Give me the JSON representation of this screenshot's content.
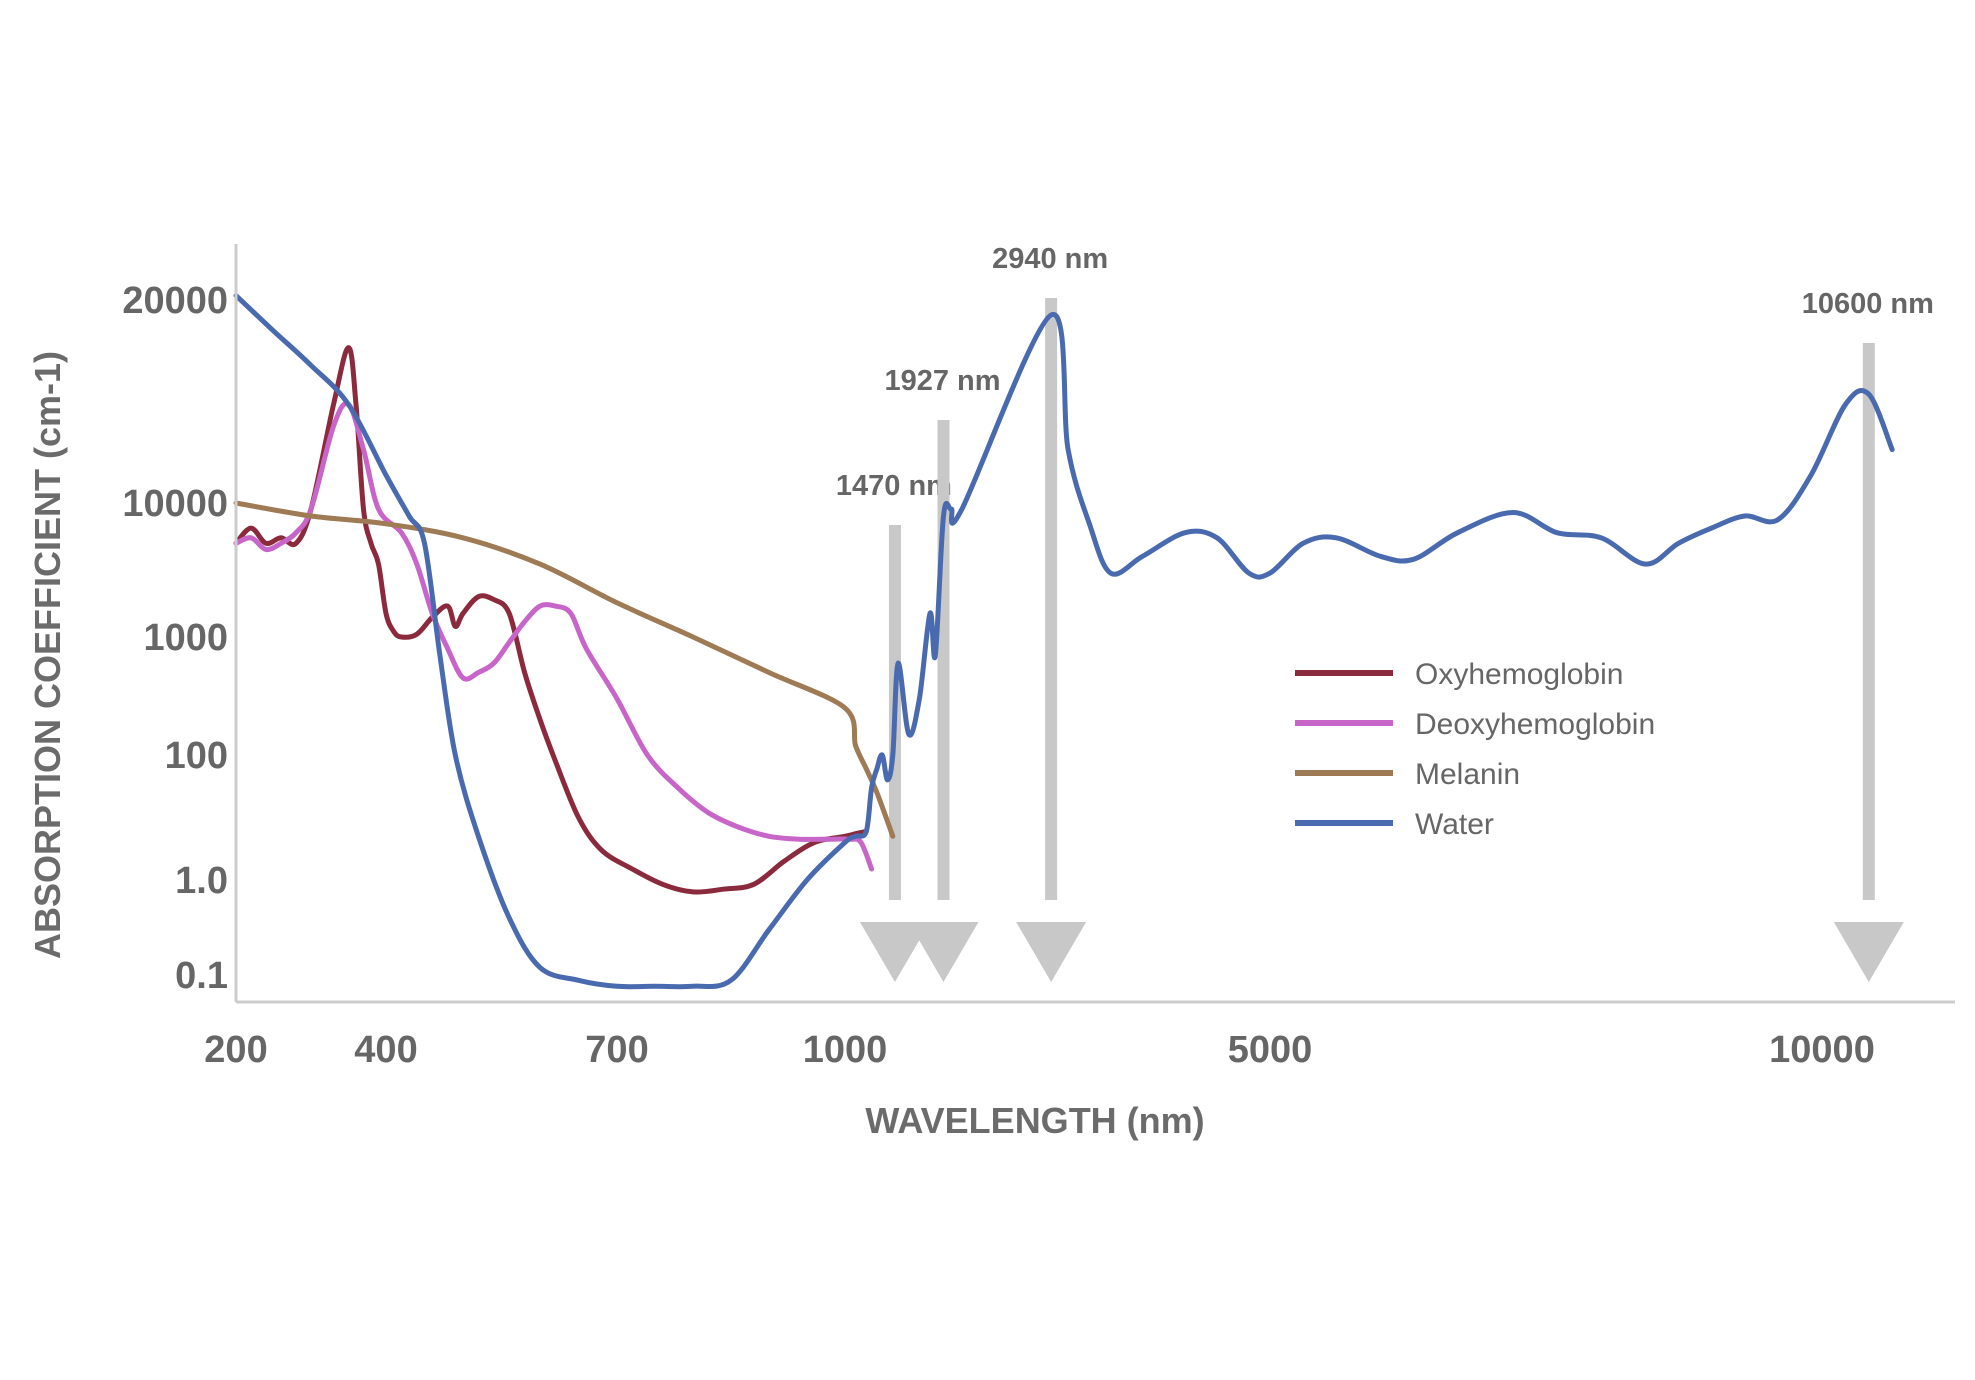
{
  "chart_data": {
    "type": "line",
    "xlabel": "WAVELENGTH (nm)",
    "ylabel": "ABSORPTION COEFFICIENT (cm-1)",
    "x_ticks": [
      "200",
      "400",
      "700",
      "1000",
      "5000",
      "10000"
    ],
    "y_ticks": [
      "0.1",
      "1.0",
      "100",
      "1000",
      "10000",
      "20000"
    ],
    "legend_position": "center-right",
    "grid": false,
    "annotations": [
      {
        "label": "1470 nm",
        "x": 1470
      },
      {
        "label": "1927 nm",
        "x": 1927
      },
      {
        "label": "2940 nm",
        "x": 2940
      },
      {
        "label": "10600 nm",
        "x": 10600
      }
    ],
    "series": [
      {
        "name": "Oxyhemoglobin",
        "color": "#8b2a3c",
        "points": [
          [
            200,
            5000
          ],
          [
            220,
            6500
          ],
          [
            240,
            5000
          ],
          [
            260,
            5500
          ],
          [
            280,
            5000
          ],
          [
            300,
            9000
          ],
          [
            330,
            14000
          ],
          [
            350,
            17000
          ],
          [
            360,
            14000
          ],
          [
            370,
            9000
          ],
          [
            380,
            5000
          ],
          [
            390,
            3500
          ],
          [
            400,
            1500
          ],
          [
            410,
            1100
          ],
          [
            420,
            1000
          ],
          [
            440,
            1050
          ],
          [
            460,
            1400
          ],
          [
            480,
            1700
          ],
          [
            490,
            1200
          ],
          [
            500,
            1500
          ],
          [
            520,
            2000
          ],
          [
            540,
            1900
          ],
          [
            560,
            1500
          ],
          [
            580,
            500
          ],
          [
            600,
            200
          ],
          [
            620,
            80
          ],
          [
            650,
            10
          ],
          [
            680,
            3
          ],
          [
            720,
            1.5
          ],
          [
            760,
            0.9
          ],
          [
            800,
            0.75
          ],
          [
            840,
            0.8
          ],
          [
            880,
            0.9
          ],
          [
            920,
            2
          ],
          [
            960,
            4
          ],
          [
            1000,
            5
          ],
          [
            1100,
            5.5
          ],
          [
            1200,
            6
          ]
        ]
      },
      {
        "name": "Deoxyhemoglobin",
        "color": "#c865c8",
        "points": [
          [
            200,
            5000
          ],
          [
            220,
            5500
          ],
          [
            240,
            4500
          ],
          [
            260,
            5000
          ],
          [
            280,
            6000
          ],
          [
            300,
            9000
          ],
          [
            330,
            13000
          ],
          [
            350,
            14000
          ],
          [
            370,
            12000
          ],
          [
            390,
            9000
          ],
          [
            420,
            6000
          ],
          [
            440,
            3500
          ],
          [
            460,
            1500
          ],
          [
            480,
            800
          ],
          [
            500,
            450
          ],
          [
            520,
            500
          ],
          [
            540,
            600
          ],
          [
            560,
            900
          ],
          [
            580,
            1300
          ],
          [
            600,
            1700
          ],
          [
            620,
            1700
          ],
          [
            640,
            1500
          ],
          [
            660,
            800
          ],
          [
            700,
            300
          ],
          [
            740,
            100
          ],
          [
            780,
            30
          ],
          [
            820,
            12
          ],
          [
            860,
            7
          ],
          [
            900,
            5
          ],
          [
            940,
            4.5
          ],
          [
            980,
            4.5
          ],
          [
            1050,
            4.5
          ],
          [
            1150,
            4
          ],
          [
            1250,
            1.5
          ]
        ]
      },
      {
        "name": "Melanin",
        "color": "#9e7a55",
        "points": [
          [
            200,
            10000
          ],
          [
            300,
            8000
          ],
          [
            400,
            7000
          ],
          [
            500,
            5500
          ],
          [
            600,
            3500
          ],
          [
            700,
            1800
          ],
          [
            800,
            1000
          ],
          [
            900,
            500
          ],
          [
            1000,
            250
          ],
          [
            1100,
            120
          ],
          [
            1200,
            60
          ],
          [
            1300,
            25
          ],
          [
            1450,
            5
          ]
        ]
      },
      {
        "name": "Water",
        "color": "#4a6ab0",
        "points": [
          [
            200,
            21000
          ],
          [
            250,
            18000
          ],
          [
            300,
            16000
          ],
          [
            350,
            14000
          ],
          [
            400,
            11000
          ],
          [
            430,
            8000
          ],
          [
            450,
            5000
          ],
          [
            470,
            700
          ],
          [
            490,
            100
          ],
          [
            520,
            5
          ],
          [
            560,
            0.4
          ],
          [
            600,
            0.12
          ],
          [
            650,
            0.09
          ],
          [
            700,
            0.08
          ],
          [
            750,
            0.08
          ],
          [
            800,
            0.08
          ],
          [
            850,
            0.09
          ],
          [
            900,
            0.3
          ],
          [
            950,
            1
          ],
          [
            1000,
            4
          ],
          [
            1100,
            5
          ],
          [
            1200,
            6
          ],
          [
            1250,
            30
          ],
          [
            1300,
            60
          ],
          [
            1350,
            100
          ],
          [
            1400,
            40
          ],
          [
            1450,
            100
          ],
          [
            1500,
            600
          ],
          [
            1600,
            150
          ],
          [
            1700,
            300
          ],
          [
            1800,
            1500
          ],
          [
            1850,
            700
          ],
          [
            1927,
            8000
          ],
          [
            2000,
            9000
          ],
          [
            2100,
            9000
          ],
          [
            2940,
            19000
          ],
          [
            3100,
            12000
          ],
          [
            3300,
            7000
          ],
          [
            3500,
            3000
          ],
          [
            3800,
            4000
          ],
          [
            4200,
            6000
          ],
          [
            4500,
            5500
          ],
          [
            4800,
            3000
          ],
          [
            5000,
            3000
          ],
          [
            5300,
            5000
          ],
          [
            5600,
            5500
          ],
          [
            6000,
            4000
          ],
          [
            6300,
            3800
          ],
          [
            6700,
            6000
          ],
          [
            7200,
            8500
          ],
          [
            7600,
            6000
          ],
          [
            8000,
            5500
          ],
          [
            8400,
            3500
          ],
          [
            8700,
            5000
          ],
          [
            9000,
            6500
          ],
          [
            9300,
            8000
          ],
          [
            9600,
            7500
          ],
          [
            9900,
            11000
          ],
          [
            10300,
            14000
          ],
          [
            10600,
            14500
          ],
          [
            10900,
            12000
          ]
        ]
      }
    ]
  }
}
